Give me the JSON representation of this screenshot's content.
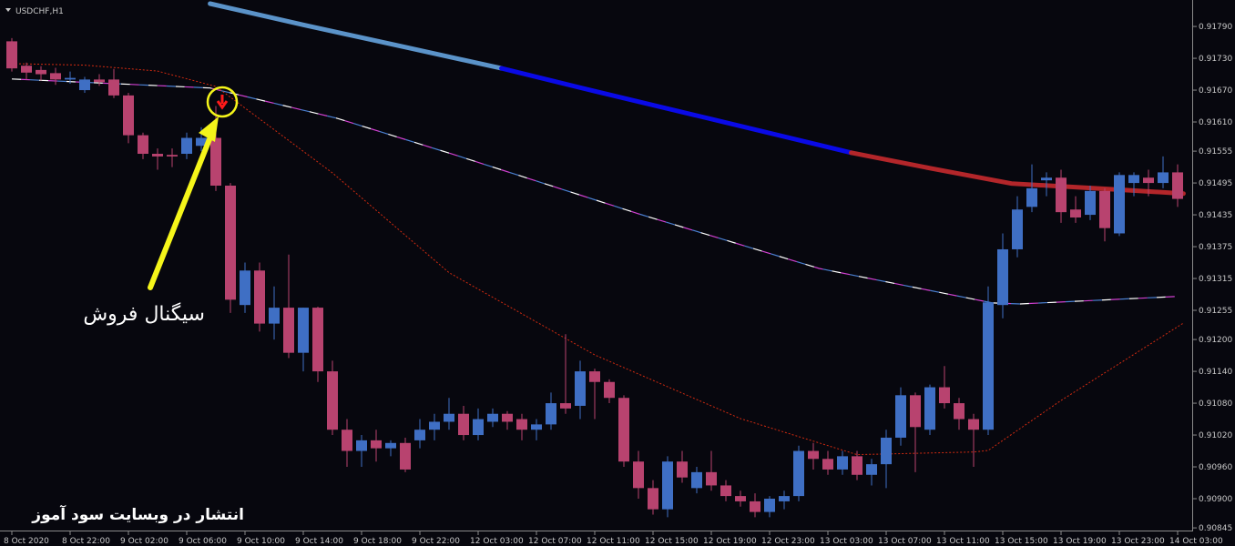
{
  "chart_data": {
    "type": "candlestick",
    "title": "USDCHF,H1",
    "annotations": [
      "سیگنال فروش",
      "انتشار در وبسایت سود آموز"
    ],
    "categories": [
      "8 Oct 2020",
      null,
      null,
      null,
      "8 Oct 22:00",
      null,
      null,
      null,
      "9 Oct 02:00",
      null,
      null,
      null,
      "9 Oct 06:00",
      null,
      null,
      null,
      "9 Oct 10:00",
      null,
      null,
      null,
      "9 Oct 14:00",
      null,
      null,
      null,
      "9 Oct 18:00",
      null,
      null,
      null,
      "9 Oct 22:00",
      null,
      null,
      null,
      "12 Oct 03:00",
      null,
      null,
      null,
      "12 Oct 07:00",
      null,
      null,
      null,
      "12 Oct 11:00",
      null,
      null,
      null,
      "12 Oct 15:00",
      null,
      null,
      null,
      "12 Oct 19:00",
      null,
      null,
      null,
      "12 Oct 23:00",
      null,
      null,
      null,
      "13 Oct 03:00",
      null,
      null,
      null,
      "13 Oct 07:00",
      null,
      null,
      null,
      "13 Oct 11:00",
      null,
      null,
      null,
      "13 Oct 15:00",
      null,
      null,
      null,
      "13 Oct 19:00",
      null,
      null,
      null,
      "13 Oct 23:00",
      null,
      null,
      null,
      "14 Oct 03:00"
    ],
    "open": [
      0.91762,
      0.91716,
      0.91708,
      0.91702,
      0.9169,
      0.9167,
      0.9169,
      0.9169,
      0.9166,
      0.91585,
      0.9155,
      0.91548,
      0.9155,
      0.91565,
      0.9158,
      0.9149,
      0.91265,
      0.9133,
      0.9123,
      0.9126,
      0.91175,
      0.9126,
      0.9114,
      0.9103,
      0.9099,
      0.9101,
      0.90995,
      0.91005,
      0.9101,
      0.9103,
      0.91045,
      0.9106,
      0.9102,
      0.91045,
      0.9106,
      0.9105,
      0.9103,
      0.9104,
      0.9108,
      0.91075,
      0.9114,
      0.9112,
      0.9109,
      0.9097,
      0.9092,
      0.9088,
      0.9097,
      0.9092,
      0.9095,
      0.90925,
      0.90905,
      0.90895,
      0.90875,
      0.90895,
      0.90905,
      0.9099,
      0.90975,
      0.90955,
      0.9098,
      0.90945,
      0.90965,
      0.91015,
      0.91095,
      0.9103,
      0.9111,
      0.9108,
      0.9105,
      0.9103,
      0.91265,
      0.9137,
      0.9145,
      0.915,
      0.91505,
      0.91445,
      0.91435,
      0.9148,
      0.914,
      0.91495,
      0.91505,
      0.91495,
      0.91515
    ],
    "high": [
      0.91768,
      0.91722,
      0.91715,
      0.91712,
      0.91705,
      0.91695,
      0.917,
      0.9171,
      0.91665,
      0.9159,
      0.9156,
      0.9156,
      0.9159,
      0.916,
      0.9164,
      0.91495,
      0.91345,
      0.91345,
      0.913,
      0.9136,
      0.9126,
      0.91262,
      0.9116,
      0.9105,
      0.9102,
      0.9103,
      0.9101,
      0.91015,
      0.9105,
      0.9106,
      0.9109,
      0.91075,
      0.9107,
      0.9107,
      0.91065,
      0.9106,
      0.9105,
      0.911,
      0.9121,
      0.9116,
      0.91145,
      0.91125,
      0.91095,
      0.9099,
      0.90935,
      0.9098,
      0.9099,
      0.9096,
      0.9099,
      0.90935,
      0.90915,
      0.9091,
      0.90905,
      0.90915,
      0.91,
      0.91005,
      0.9099,
      0.9099,
      0.9099,
      0.90975,
      0.9103,
      0.9111,
      0.911,
      0.91115,
      0.9115,
      0.9109,
      0.9106,
      0.913,
      0.914,
      0.9147,
      0.9153,
      0.91515,
      0.9152,
      0.9147,
      0.9149,
      0.91485,
      0.91515,
      0.91515,
      0.9152,
      0.91545,
      0.9153
    ],
    "low": [
      0.91705,
      0.9169,
      0.91688,
      0.9168,
      0.91682,
      0.91665,
      0.91678,
      0.91655,
      0.9157,
      0.9154,
      0.9152,
      0.91525,
      0.9154,
      0.91555,
      0.9148,
      0.9125,
      0.9125,
      0.91215,
      0.912,
      0.91165,
      0.9114,
      0.9112,
      0.9102,
      0.9096,
      0.9096,
      0.9097,
      0.9098,
      0.9095,
      0.90995,
      0.9101,
      0.9103,
      0.9101,
      0.9101,
      0.91035,
      0.9103,
      0.9101,
      0.9101,
      0.9103,
      0.9106,
      0.9105,
      0.9105,
      0.9108,
      0.9096,
      0.909,
      0.9087,
      0.90865,
      0.9093,
      0.9091,
      0.90915,
      0.90895,
      0.90885,
      0.90865,
      0.90865,
      0.9088,
      0.90895,
      0.90955,
      0.90945,
      0.90945,
      0.90935,
      0.90925,
      0.9092,
      0.91,
      0.9095,
      0.9102,
      0.9107,
      0.9103,
      0.9096,
      0.9102,
      0.9124,
      0.91355,
      0.9144,
      0.9147,
      0.9142,
      0.9142,
      0.91425,
      0.91385,
      0.91395,
      0.9147,
      0.9147,
      0.91485,
      0.9145
    ],
    "close": [
      0.91711,
      0.91703,
      0.917,
      0.9169,
      0.91693,
      0.9169,
      0.91685,
      0.9166,
      0.91585,
      0.9155,
      0.91545,
      0.91545,
      0.9158,
      0.9158,
      0.9149,
      0.91275,
      0.9133,
      0.9123,
      0.9126,
      0.91175,
      0.9126,
      0.9114,
      0.9103,
      0.9099,
      0.9101,
      0.90995,
      0.91005,
      0.90955,
      0.9103,
      0.91045,
      0.9106,
      0.9102,
      0.9105,
      0.9106,
      0.91045,
      0.9103,
      0.9104,
      0.9108,
      0.9107,
      0.9114,
      0.9112,
      0.9109,
      0.9097,
      0.9092,
      0.9088,
      0.9097,
      0.9094,
      0.9095,
      0.90925,
      0.90905,
      0.90895,
      0.90875,
      0.909,
      0.90905,
      0.9099,
      0.90975,
      0.90955,
      0.9098,
      0.90945,
      0.90965,
      0.91015,
      0.91095,
      0.91035,
      0.9111,
      0.9108,
      0.9105,
      0.9103,
      0.9127,
      0.9137,
      0.91445,
      0.91485,
      0.91505,
      0.9144,
      0.9143,
      0.9148,
      0.9141,
      0.9151,
      0.9151,
      0.91495,
      0.91515,
      0.91465
    ],
    "up_color": "#3f6fc4",
    "down_color": "#b8436f",
    "lines": [
      {
        "x": [
          13.6,
          20,
          27,
          33.6
        ],
        "values": [
          0.91833,
          0.91793,
          0.91751,
          0.91711
        ],
        "color": "#5b93c9",
        "style": "solid"
      },
      {
        "x": [
          33.6,
          40,
          47,
          57.6
        ],
        "values": [
          0.91711,
          0.91668,
          0.91622,
          0.91552
        ],
        "color": "#0a0ae6",
        "style": "solid"
      },
      {
        "x": [
          57.6,
          63,
          68.6,
          75,
          80.4
        ],
        "values": [
          0.91552,
          0.91523,
          0.91494,
          0.91484,
          0.91475
        ],
        "color": "#b3262a",
        "style": "solid"
      },
      {
        "x": [
          0,
          13.6,
          22.3,
          30.4,
          43,
          55.4,
          67.3,
          69.2,
          79.8
        ],
        "values": [
          0.91691,
          0.91674,
          0.91617,
          0.91548,
          0.91437,
          0.91334,
          0.91269,
          0.91267,
          0.91281
        ],
        "colors": [
          "#ffffff",
          "#d040d0",
          "#4a7fd0"
        ],
        "style": "dashed"
      },
      {
        "x": [
          0,
          5,
          10,
          14,
          22,
          30,
          40,
          50,
          58,
          66,
          67,
          72,
          80.4
        ],
        "values": [
          0.9172,
          0.91717,
          0.91706,
          0.91677,
          0.91514,
          0.91326,
          0.91171,
          0.91051,
          0.90983,
          0.90988,
          0.90991,
          0.91085,
          0.91231
        ],
        "color": "#d02a10",
        "style": "dotted"
      }
    ],
    "ylim": [
      0.9084,
      0.91833
    ],
    "yticks": [
      {
        "value": 0.9179,
        "label": "0.91790"
      },
      {
        "value": 0.9173,
        "label": "0.91730"
      },
      {
        "value": 0.9167,
        "label": "0.91670"
      },
      {
        "value": 0.9161,
        "label": "0.91610"
      },
      {
        "value": 0.91555,
        "label": "0.91555"
      },
      {
        "value": 0.91495,
        "label": "0.91495"
      },
      {
        "value": 0.91435,
        "label": "0.91435"
      },
      {
        "value": 0.91375,
        "label": "0.91375"
      },
      {
        "value": 0.91315,
        "label": "0.91315"
      },
      {
        "value": 0.91255,
        "label": "0.91255"
      },
      {
        "value": 0.912,
        "label": "0.91200"
      },
      {
        "value": 0.9114,
        "label": "0.91140"
      },
      {
        "value": 0.9108,
        "label": "0.91080"
      },
      {
        "value": 0.9102,
        "label": "0.91020"
      },
      {
        "value": 0.9096,
        "label": "0.90960"
      },
      {
        "value": 0.909,
        "label": "0.90900"
      },
      {
        "value": 0.90845,
        "label": "0.90845"
      }
    ],
    "grid": false
  }
}
